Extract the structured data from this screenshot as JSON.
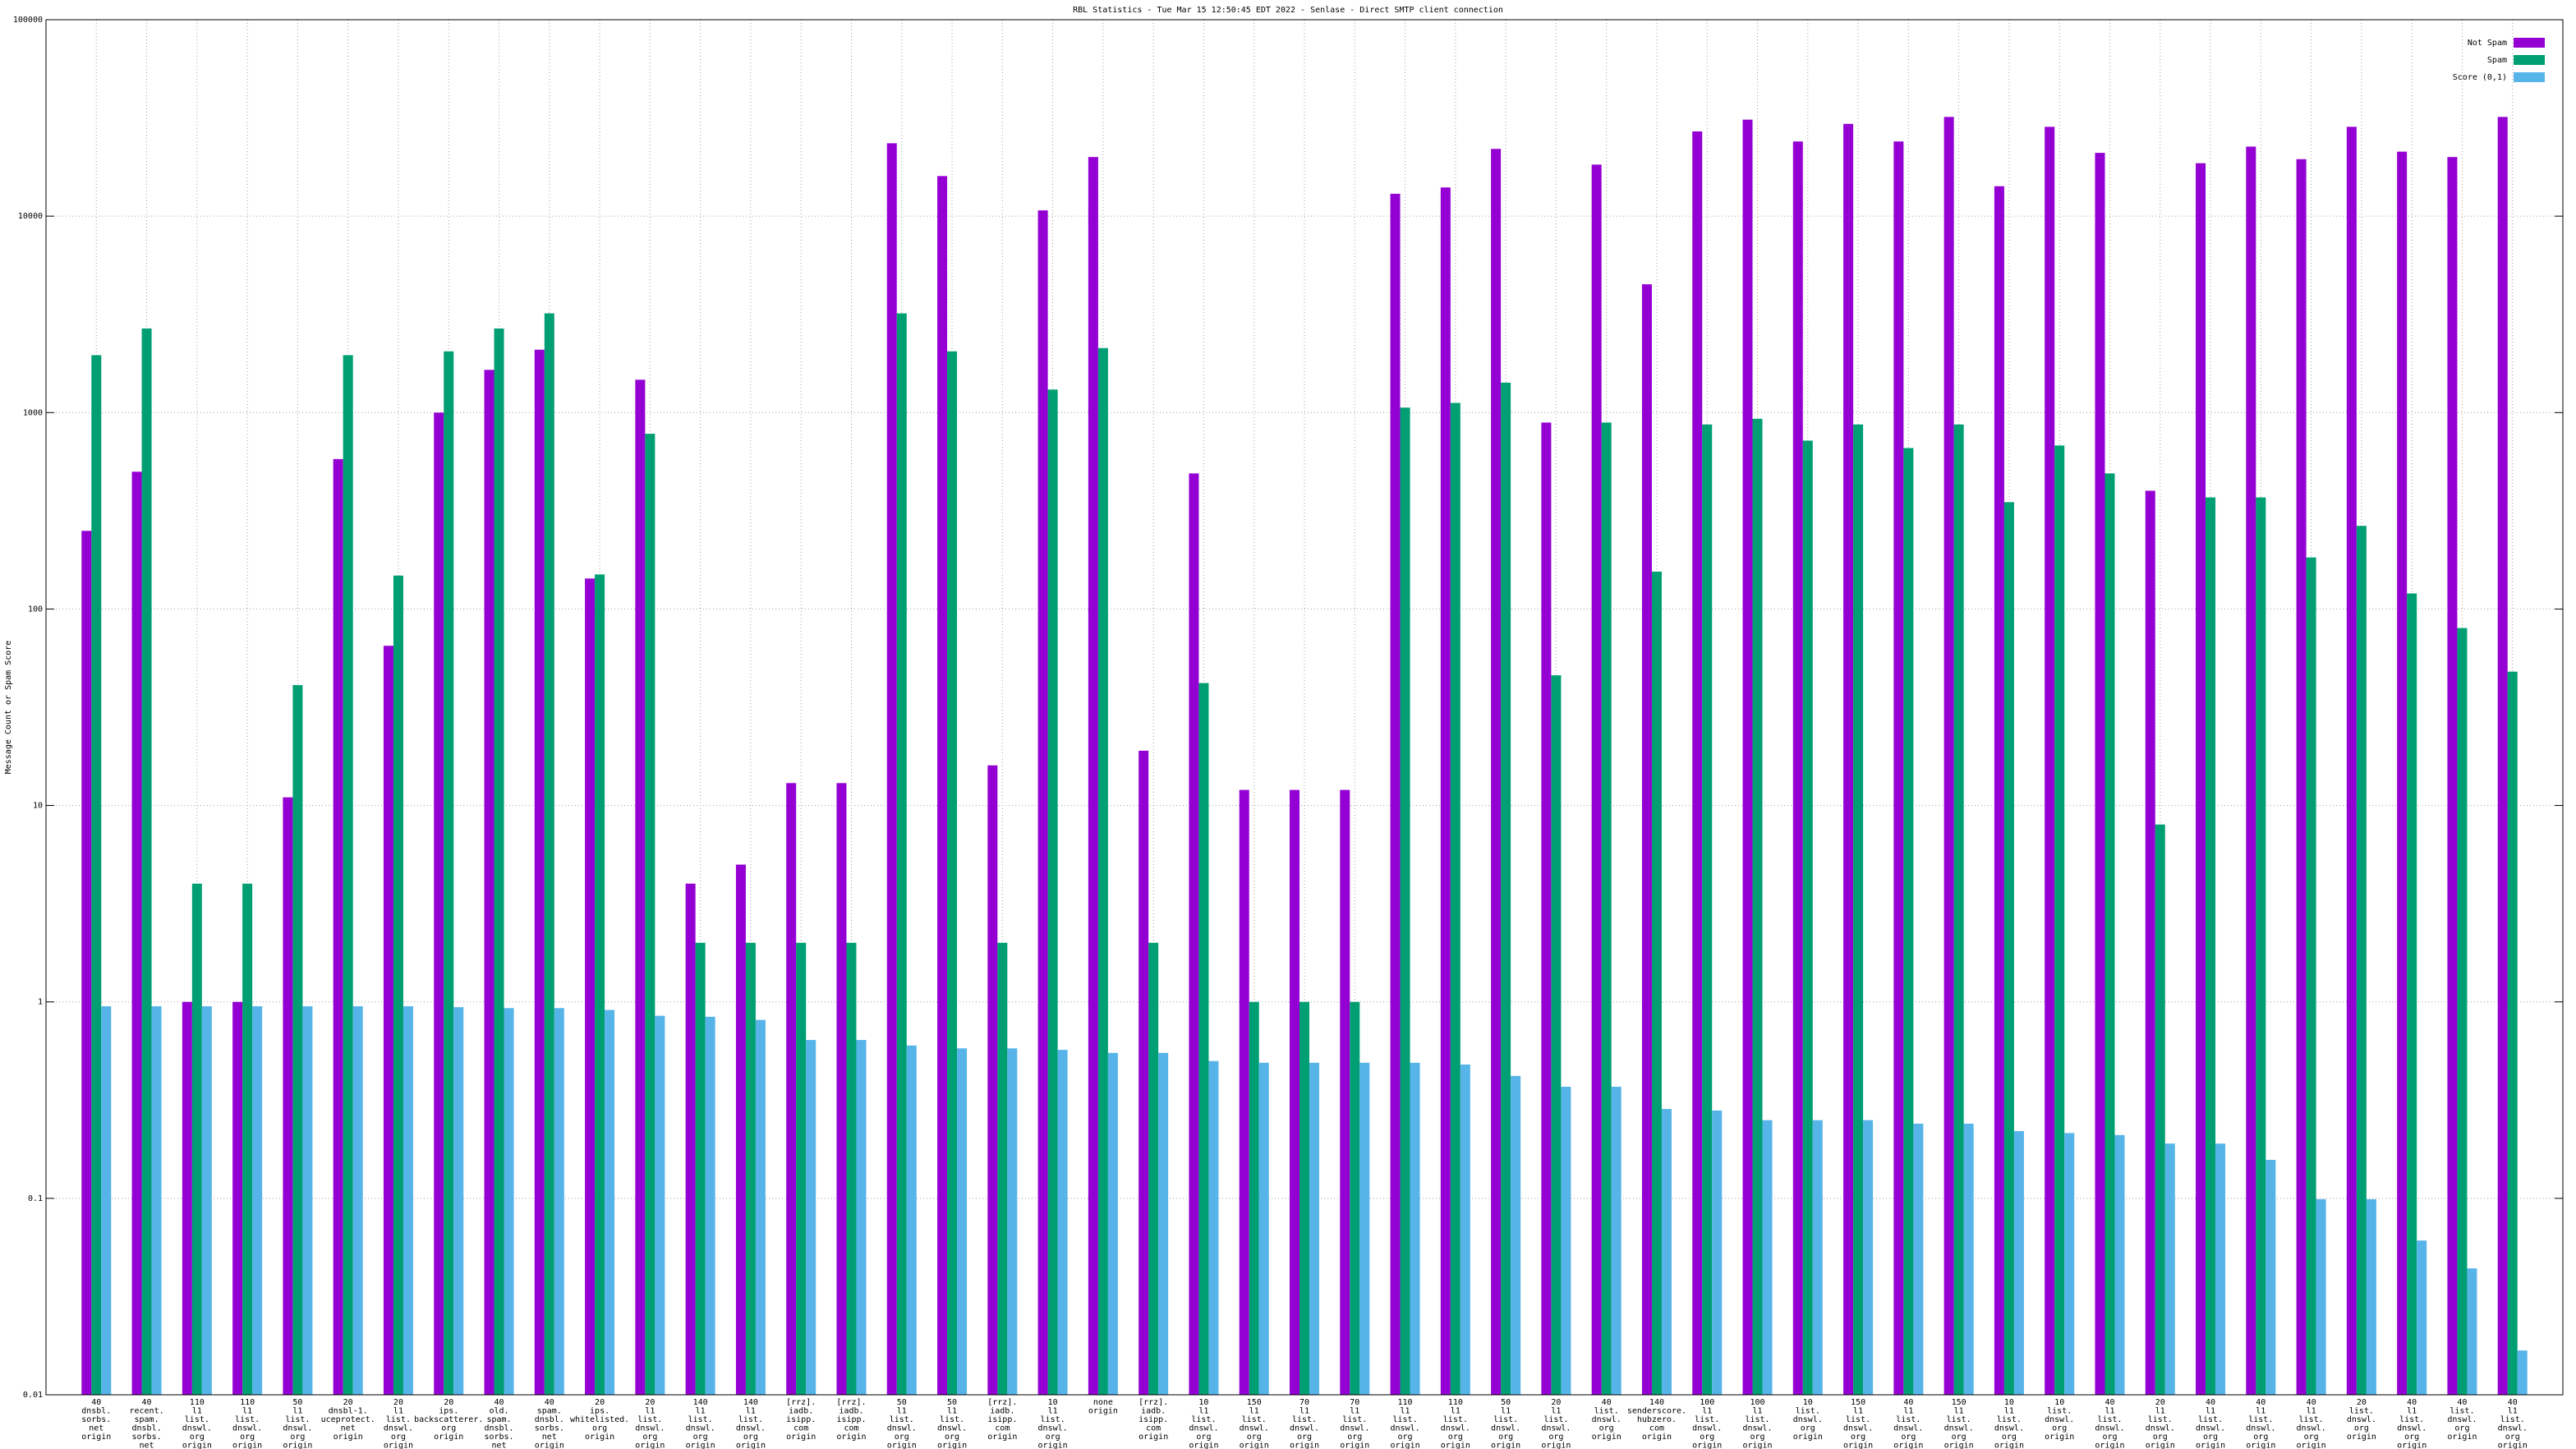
{
  "chart_data": {
    "type": "bar",
    "title": "RBL Statistics - Tue Mar 15 12:50:45 EDT 2022 - Senlase - Direct SMTP client connection",
    "ylabel": "Message Count or Spam Score",
    "log_scale": true,
    "grid": true,
    "legend": "top-right",
    "ylim": [
      0.01,
      100000
    ],
    "yticks": [
      0.01,
      0.1,
      1,
      10,
      100,
      1000,
      10000,
      100000
    ],
    "categories": [
      "40\ndnsbl.\nsorbs.\nnet\norigin",
      "40\nrecent.\nspam.\ndnsbl.\nsorbs.\nnet\norigin",
      "110\nl1\nlist.\ndnswl.\norg\norigin",
      "110\nl1\nlist.\ndnswl.\norg\norigin",
      "50\nl1\nlist.\ndnswl.\norg\norigin",
      "20\ndnsbl-1.\nuceprotect.\nnet\norigin",
      "20\nl1\nlist.\ndnswl.\norg\norigin",
      "20\nips.\nbackscatterer.\norg\norigin",
      "40\nold.\nspam.\ndnsbl.\nsorbs.\nnet\norigin",
      "40\nspam.\ndnsbl.\nsorbs.\nnet\norigin",
      "20\nips.\nwhitelisted.\norg\norigin",
      "20\nl1\nlist.\ndnswl.\norg\norigin",
      "140\nl1\nlist.\ndnswl.\norg\norigin",
      "140\nl1\nlist.\ndnswl.\norg\norigin",
      "[rrz].\niadb.\nisipp.\ncom\norigin",
      "[rrz].\niadb.\nisipp.\ncom\norigin",
      "50\nl1\nlist.\ndnswl.\norg\norigin",
      "50\nl1\nlist.\ndnswl.\norg\norigin",
      "[rrz].\niadb.\nisipp.\ncom\norigin",
      "10\nl1\nlist.\ndnswl.\norg\norigin",
      "none\norigin",
      "[rrz].\niadb.\nisipp.\ncom\norigin",
      "10\nl1\nlist.\ndnswl.\norg\norigin",
      "150\nl1\nlist.\ndnswl.\norg\norigin",
      "70\nl1\nlist.\ndnswl.\norg\norigin",
      "70\nl1\nlist.\ndnswl.\norg\norigin",
      "110\nl1\nlist.\ndnswl.\norg\norigin",
      "110\nl1\nlist.\ndnswl.\norg\norigin",
      "50\nl1\nlist.\ndnswl.\norg\norigin",
      "20\nl1\nlist.\ndnswl.\norg\norigin",
      "40\nlist.\ndnswl.\norg\norigin",
      "140\nsenderscore.\nhubzero.\ncom\norigin",
      "100\nl1\nlist.\ndnswl.\norg\norigin",
      "100\nl1\nlist.\ndnswl.\norg\norigin",
      "10\nlist.\ndnswl.\norg\norigin",
      "150\nl1\nlist.\ndnswl.\norg\norigin",
      "40\nl1\nlist.\ndnswl.\norg\norigin",
      "150\nl1\nlist.\ndnswl.\norg\norigin",
      "10\nl1\nlist.\ndnswl.\norg\norigin",
      "10\nlist.\ndnswl.\norg\norigin",
      "40\nl1\nlist.\ndnswl.\norg\norigin",
      "20\nl1\nlist.\ndnswl.\norg\norigin",
      "40\nl1\nlist.\ndnswl.\norg\norigin",
      "40\nl1\nlist.\ndnswl.\norg\norigin",
      "40\nl1\nlist.\ndnswl.\norg\norigin",
      "20\nlist.\ndnswl.\norg\norigin",
      "40\nl1\nlist.\ndnswl.\norg\norigin",
      "40\nlist.\ndnswl.\norg\norigin",
      "40\nl1\nlist.\ndnswl.\norg\norigin"
    ],
    "series": [
      {
        "name": "Not Spam",
        "color": "#9400d3",
        "values": [
          250,
          500,
          1,
          1,
          11,
          580,
          65,
          1000,
          1650,
          2090,
          143,
          1470,
          4,
          5,
          13,
          13,
          23500,
          16000,
          16,
          10700,
          20000,
          19,
          490,
          12,
          12,
          12,
          13000,
          14000,
          22000,
          890,
          18300,
          4500,
          27000,
          31000,
          24000,
          29500,
          24000,
          32000,
          14200,
          28500,
          21000,
          400,
          18600,
          22600,
          19500,
          28500,
          21300,
          20000,
          32000
        ]
      },
      {
        "name": "Spam",
        "color": "#009e73",
        "values": [
          1960,
          2680,
          4,
          4,
          41,
          1960,
          148,
          2050,
          2680,
          3200,
          150,
          780,
          2,
          2,
          2,
          2,
          3200,
          2050,
          2,
          1310,
          2130,
          2,
          42,
          1,
          1,
          1,
          1060,
          1120,
          1420,
          46,
          890,
          155,
          870,
          930,
          720,
          870,
          660,
          870,
          350,
          680,
          490,
          8,
          370,
          370,
          183,
          265,
          120,
          80,
          48
        ]
      },
      {
        "name": "Score (0,1)",
        "color": "#56b4e9",
        "values": [
          0.95,
          0.95,
          0.95,
          0.95,
          0.95,
          0.95,
          0.95,
          0.94,
          0.93,
          0.93,
          0.91,
          0.85,
          0.84,
          0.81,
          0.64,
          0.64,
          0.6,
          0.58,
          0.58,
          0.57,
          0.55,
          0.55,
          0.5,
          0.49,
          0.49,
          0.49,
          0.49,
          0.48,
          0.42,
          0.37,
          0.37,
          0.285,
          0.28,
          0.25,
          0.25,
          0.25,
          0.24,
          0.24,
          0.22,
          0.215,
          0.21,
          0.19,
          0.19,
          0.157,
          0.099,
          0.099,
          0.061,
          0.044,
          0.0168
        ]
      }
    ]
  }
}
